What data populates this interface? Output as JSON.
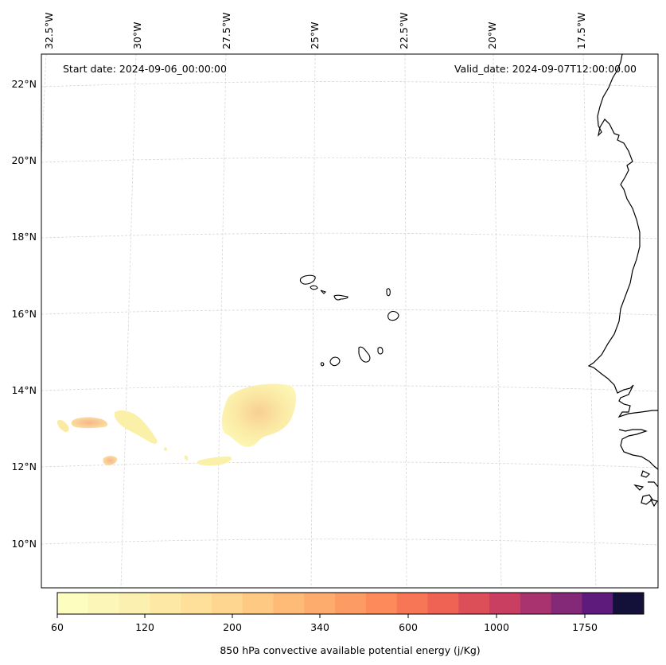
{
  "map": {
    "start_date": "Start date: 2024-09-06_00:00:00",
    "valid_date": "Valid_date: 2024-09-07T12:00:00.00",
    "lon_labels": [
      "32.5°W",
      "30°W",
      "27.5°W",
      "25°W",
      "22.5°W",
      "20°W",
      "17.5°W"
    ],
    "lat_labels": [
      "22°N",
      "20°N",
      "18°N",
      "16°N",
      "14°N",
      "12°N",
      "10°N"
    ]
  },
  "colorbar": {
    "title": "850 hPa convective available potential energy (j/Kg)",
    "tick_labels": [
      "60",
      "120",
      "200",
      "340",
      "600",
      "1000",
      "1750"
    ],
    "colors": [
      "#fcfdbf",
      "#fcf7b9",
      "#fcf0b0",
      "#fde9a5",
      "#fee09a",
      "#fed68f",
      "#fec983",
      "#febb78",
      "#fdac6d",
      "#fd9b64",
      "#fc8a5b",
      "#f77655",
      "#ee6353",
      "#dd4f58",
      "#c93f61",
      "#a8336e",
      "#842878",
      "#5f1b7c",
      "#13103a"
    ]
  },
  "colors": {
    "coastline": "#000000",
    "grid": "#cccccc",
    "cape_light": "#fbf1a8",
    "cape_mid": "#f9c98a"
  }
}
